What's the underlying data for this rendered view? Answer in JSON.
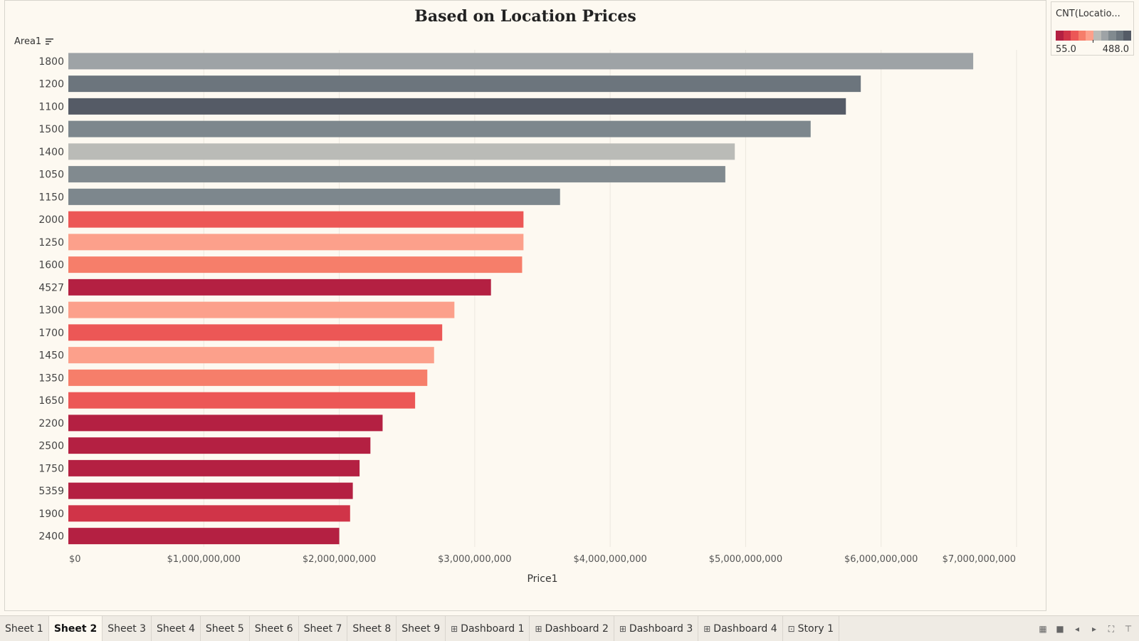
{
  "chart_data": {
    "type": "bar",
    "orientation": "horizontal",
    "title": "Based on Location Prices",
    "ylabel": "Area1",
    "xlabel": "Price1",
    "xlim": [
      0,
      7000000000
    ],
    "xticks": [
      "$0",
      "$1,000,000,000",
      "$2,000,000,000",
      "$3,000,000,000",
      "$4,000,000,000",
      "$5,000,000,000",
      "$6,000,000,000",
      "$7,000,000,000"
    ],
    "categories": [
      "1800",
      "1200",
      "1100",
      "1500",
      "1400",
      "1050",
      "1150",
      "2000",
      "1250",
      "1600",
      "4527",
      "1300",
      "1700",
      "1450",
      "1350",
      "1650",
      "2200",
      "2500",
      "1750",
      "5359",
      "1900",
      "2400"
    ],
    "values": [
      6680000000,
      5850000000,
      5740000000,
      5480000000,
      4920000000,
      4850000000,
      3630000000,
      3360000000,
      3360000000,
      3350000000,
      3120000000,
      2850000000,
      2760000000,
      2700000000,
      2650000000,
      2560000000,
      2320000000,
      2230000000,
      2150000000,
      2100000000,
      2080000000,
      2000000000
    ],
    "colors": [
      "#9ea3a6",
      "#6c757d",
      "#555b66",
      "#7d878d",
      "#babbb7",
      "#818a8f",
      "#7d878d",
      "#ec5756",
      "#fca08b",
      "#f67e6a",
      "#b42042",
      "#fca08b",
      "#ec5756",
      "#fca08b",
      "#f67e6a",
      "#ec5756",
      "#b42042",
      "#b42042",
      "#b42042",
      "#b42042",
      "#d03448",
      "#b42042"
    ],
    "grid": true,
    "legend": {
      "title": "CNT(Locatio...",
      "min_label": "55.0",
      "max_label": "488.0",
      "ramp": [
        "#b42042",
        "#d03448",
        "#ec5756",
        "#f67e6a",
        "#fca08b",
        "#babbb7",
        "#9ea3a6",
        "#818a8f",
        "#6c757d",
        "#555b66"
      ],
      "placement": "top-right"
    }
  },
  "sort_icon": "sort-descending-icon",
  "tabs": [
    {
      "label": "Sheet 1",
      "icon": ""
    },
    {
      "label": "Sheet 2",
      "icon": "",
      "active": true
    },
    {
      "label": "Sheet 3",
      "icon": ""
    },
    {
      "label": "Sheet 4",
      "icon": ""
    },
    {
      "label": "Sheet 5",
      "icon": ""
    },
    {
      "label": "Sheet 6",
      "icon": ""
    },
    {
      "label": "Sheet 7",
      "icon": ""
    },
    {
      "label": "Sheet 8",
      "icon": ""
    },
    {
      "label": "Sheet 9",
      "icon": ""
    },
    {
      "label": "Dashboard 1",
      "icon": "dashboard-icon"
    },
    {
      "label": "Dashboard 2",
      "icon": "dashboard-icon"
    },
    {
      "label": "Dashboard 3",
      "icon": "dashboard-icon"
    },
    {
      "label": "Dashboard 4",
      "icon": "dashboard-icon"
    },
    {
      "label": "Story 1",
      "icon": "story-icon"
    }
  ],
  "tab_controls": [
    "grid-view-icon",
    "filmstrip-icon",
    "prev-icon",
    "next-icon",
    "fit-screen-icon",
    "presentation-icon"
  ]
}
